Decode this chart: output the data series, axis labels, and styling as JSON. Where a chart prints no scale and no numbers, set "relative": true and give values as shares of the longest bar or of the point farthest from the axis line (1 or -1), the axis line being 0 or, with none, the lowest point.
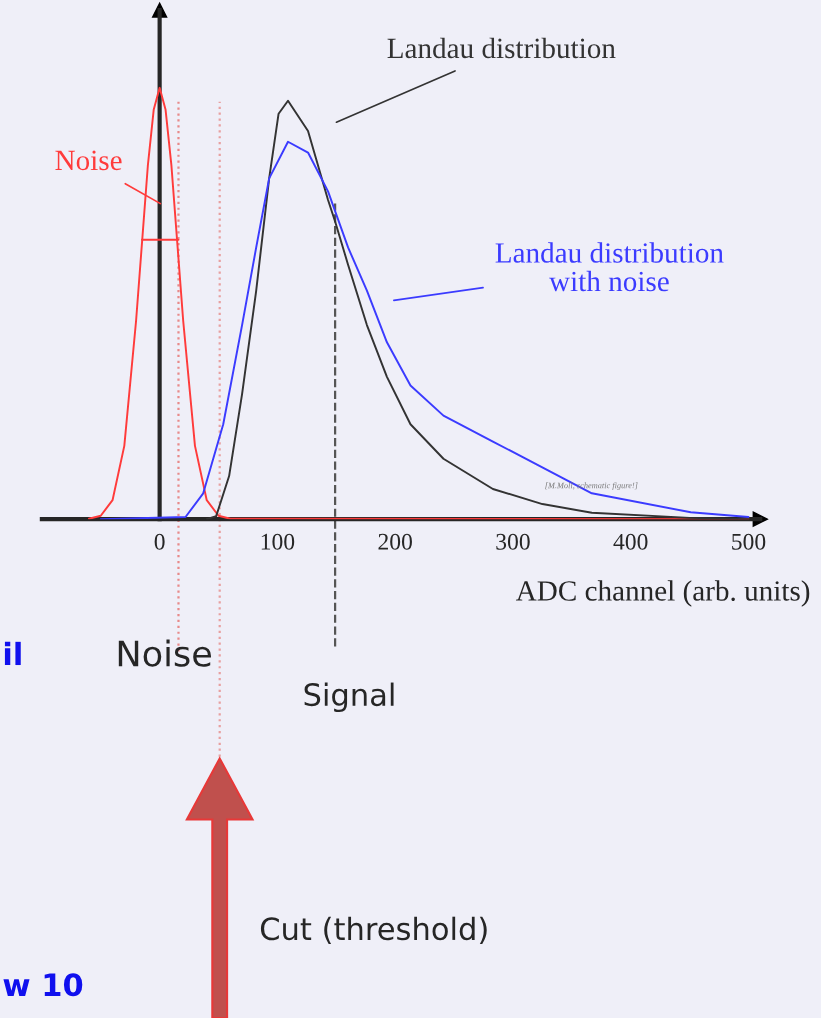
{
  "chart_data": {
    "type": "line",
    "relative": true,
    "xlabel": "ADC channel (arb. units)",
    "xlim": [
      -100,
      510
    ],
    "xticks": [
      0,
      100,
      200,
      300,
      400,
      500
    ],
    "tick_labels": "x",
    "grid": false,
    "legend": false,
    "marker": "none",
    "line_style": "solid",
    "series": [
      {
        "name": "Noise",
        "color": "#ff3b3b",
        "x": [
          -60,
          -50,
          -40,
          -30,
          -20,
          -15,
          -10,
          -5,
          0,
          5,
          10,
          15,
          20,
          30,
          40,
          50,
          60,
          500
        ],
        "values": [
          0.001,
          0.008,
          0.044,
          0.17,
          0.46,
          0.64,
          0.82,
          0.95,
          1,
          0.95,
          0.82,
          0.64,
          0.46,
          0.17,
          0.044,
          0.008,
          0.001,
          0
        ]
      },
      {
        "name": "Landau distribution",
        "color": "#333333",
        "x": [
          40,
          48,
          59,
          70,
          82,
          93,
          101,
          109,
          126,
          143,
          149,
          160,
          176,
          193,
          213,
          241,
          283,
          325,
          367,
          450,
          500
        ],
        "values": [
          0,
          0.007,
          0.1,
          0.29,
          0.53,
          0.79,
          0.94,
          0.97,
          0.9,
          0.74,
          0.69,
          0.59,
          0.45,
          0.33,
          0.22,
          0.14,
          0.07,
          0.035,
          0.015,
          0.003,
          0
        ]
      },
      {
        "name": "Landau distribution\nwith noise",
        "color": "#3b3bff",
        "x": [
          -50,
          22,
          37,
          54,
          70,
          82,
          93,
          109,
          126,
          143,
          160,
          176,
          193,
          213,
          241,
          283,
          367,
          451,
          500
        ],
        "values": [
          0,
          0.005,
          0.06,
          0.22,
          0.45,
          0.63,
          0.79,
          0.875,
          0.85,
          0.76,
          0.63,
          0.53,
          0.41,
          0.31,
          0.24,
          0.18,
          0.06,
          0.016,
          0.005
        ]
      },
      {
        "color": "#ff3b3b",
        "x": [
          -15,
          16
        ],
        "values": [
          0.648,
          0.648
        ]
      }
    ],
    "ref_lines": [
      {
        "axis": "x",
        "value": 16,
        "label": "Noise",
        "color": "#e88a8a",
        "line_style": "dotted"
      },
      {
        "axis": "x",
        "value": 149,
        "label": "Signal",
        "color": "#555555",
        "line_style": "dashed"
      },
      {
        "axis": "x",
        "value": 51,
        "label": "Cut (threshold)",
        "color": "#e8a0a0",
        "line_style": "dotted"
      }
    ],
    "annotations": [
      "[M.Moll, schematic figure!]",
      "il",
      "w 10"
    ]
  }
}
